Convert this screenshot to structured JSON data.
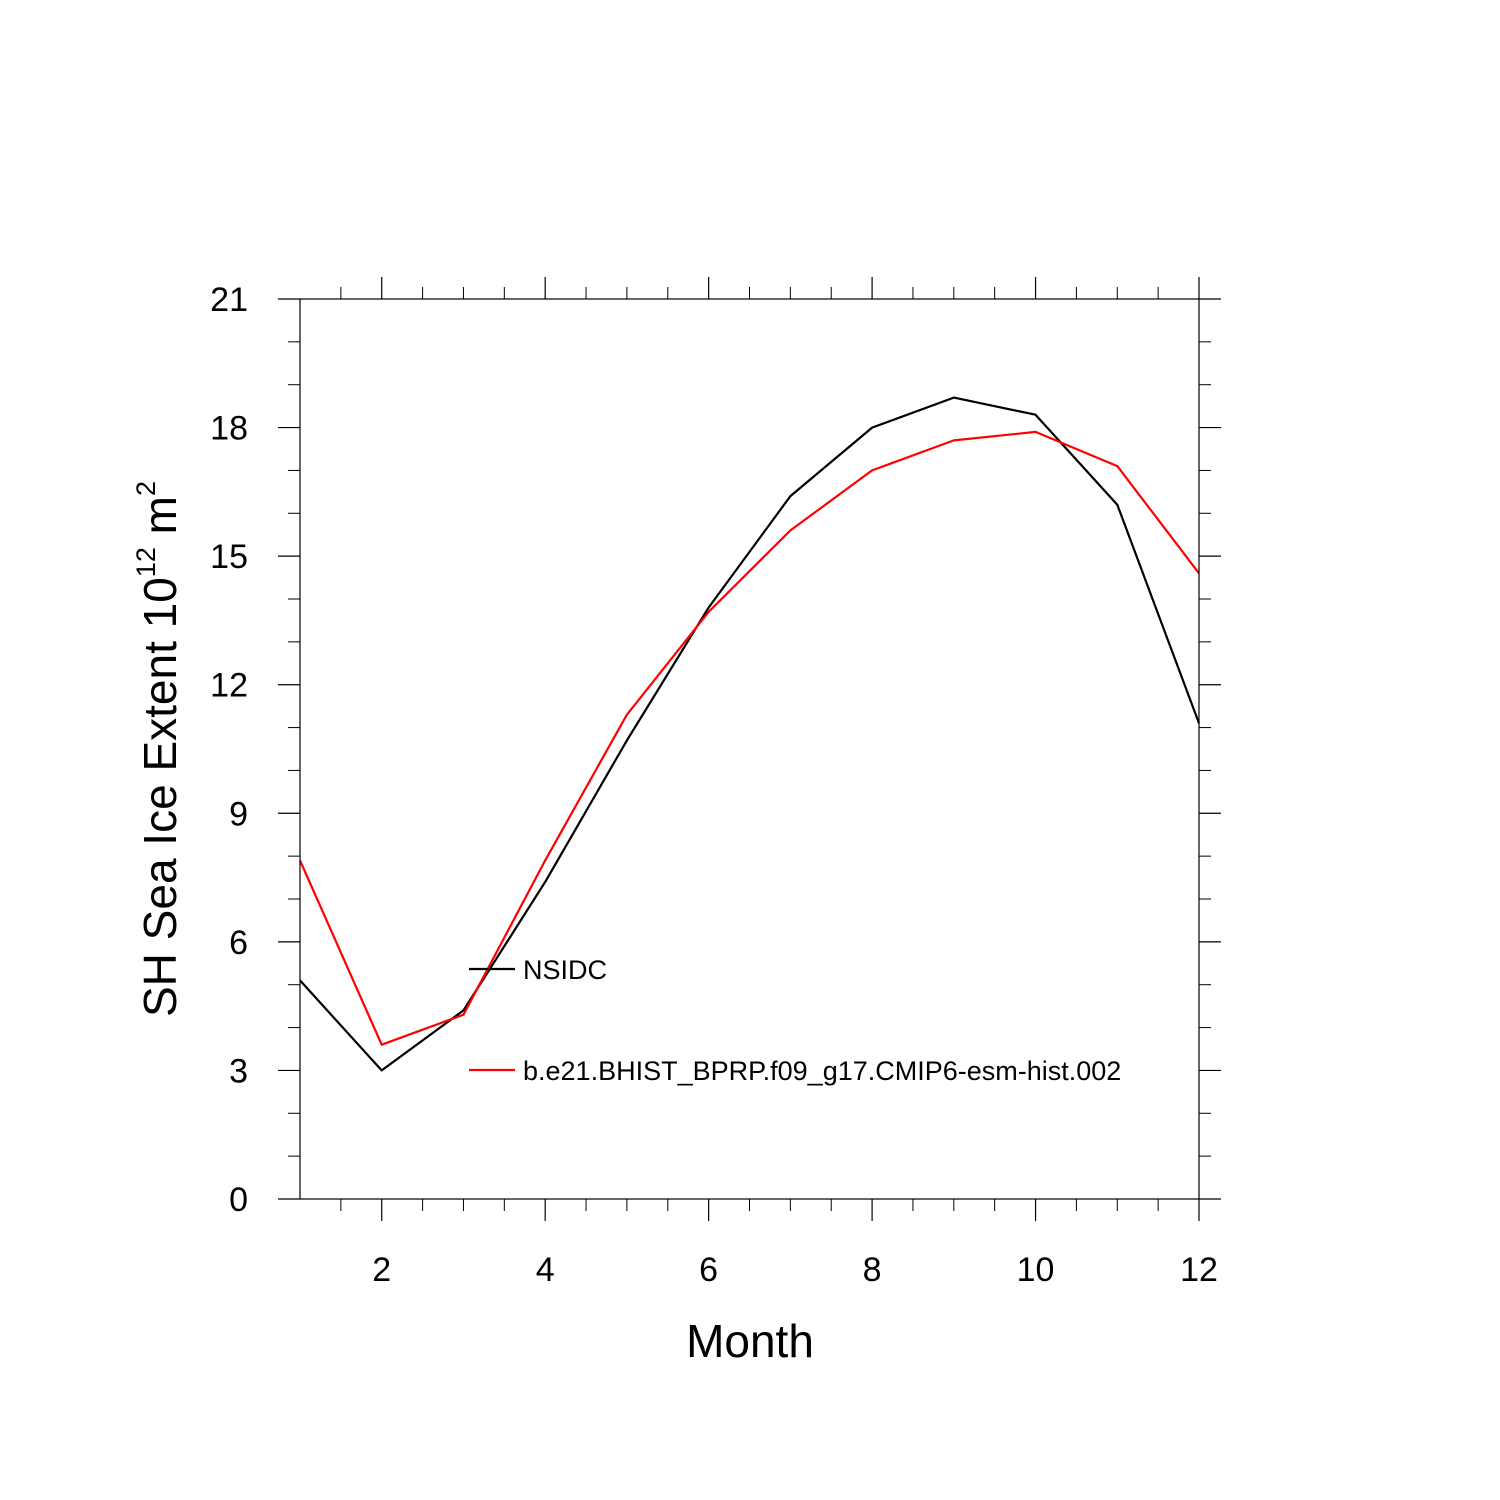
{
  "chart_data": {
    "type": "line",
    "title": "",
    "xlabel": "Month",
    "ylabel": {
      "prefix": "SH Sea Ice Extent 10",
      "exponent": "12",
      "unit": " m",
      "unit_exponent": "2"
    },
    "xlim": [
      1,
      12
    ],
    "ylim": [
      0,
      21
    ],
    "x_ticks": [
      "2",
      "4",
      "6",
      "8",
      "10",
      "12"
    ],
    "y_ticks": [
      "0",
      "3",
      "6",
      "9",
      "12",
      "15",
      "18",
      "21"
    ],
    "grid": false,
    "legend_position": "inside-lower-left",
    "x": [
      1,
      2,
      3,
      4,
      5,
      6,
      7,
      8,
      9,
      10,
      11,
      12
    ],
    "series": [
      {
        "name": "NSIDC",
        "color": "#000000",
        "values": [
          5.1,
          3.0,
          4.4,
          7.4,
          10.7,
          13.8,
          16.4,
          18.0,
          18.7,
          18.3,
          16.2,
          11.1
        ]
      },
      {
        "name": "b.e21.BHIST_BPRP.f09_g17.CMIP6-esm-hist.002",
        "color": "#ff0000",
        "values": [
          7.9,
          3.6,
          4.3,
          7.9,
          11.3,
          13.7,
          15.6,
          17.0,
          17.7,
          17.9,
          17.1,
          14.6
        ]
      }
    ]
  }
}
